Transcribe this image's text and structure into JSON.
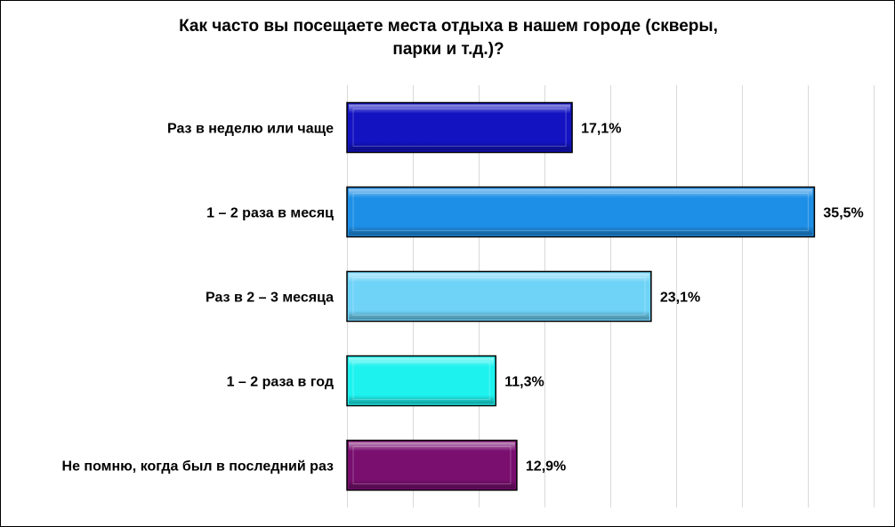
{
  "chart_data": {
    "type": "bar",
    "orientation": "horizontal",
    "title": "Как часто вы посещаете места отдыха в нашем городе (скверы, парки и т.д.)?",
    "title_lines": [
      "Как часто вы посещаете места отдыха в нашем городе (скверы,",
      "парки и т.д.)?"
    ],
    "categories": [
      "Раз в неделю или чаще",
      "1 – 2 раза в месяц",
      "Раз в 2 – 3 месяца",
      "1 – 2 раза в год",
      "Не помню, когда был в последний раз"
    ],
    "values": [
      17.1,
      35.5,
      23.1,
      11.3,
      12.9
    ],
    "value_labels": [
      "17,1%",
      "35,5%",
      "23,1%",
      "11,3%",
      "12,9%"
    ],
    "colors": [
      "#1313c2",
      "#1e8fe6",
      "#6fd3f7",
      "#1ef2ef",
      "#7a0f70"
    ],
    "xlim": [
      0,
      40
    ],
    "x_unit": "%",
    "grid": "vertical",
    "gridline_step": 5,
    "legend": "none"
  }
}
